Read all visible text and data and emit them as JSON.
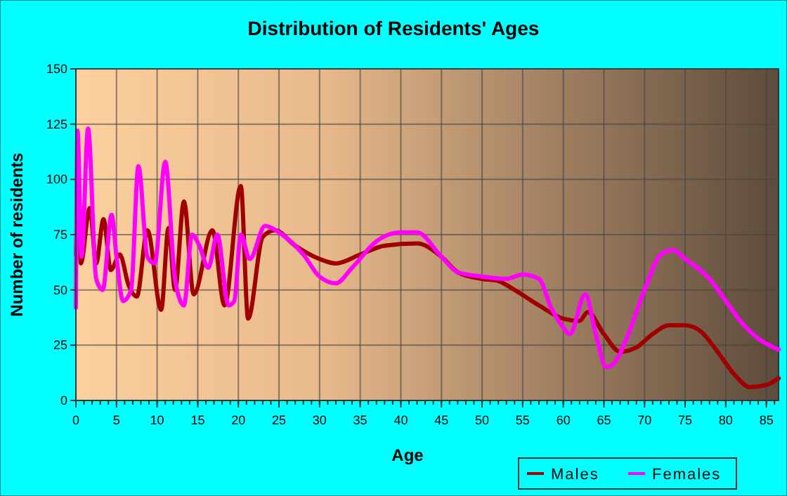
{
  "chart_data": {
    "type": "line",
    "title": "Distribution of Residents' Ages",
    "xlabel": "Age",
    "ylabel": "Number of residents",
    "xlim": [
      0,
      86.5
    ],
    "xticks": [
      0,
      5,
      10,
      15,
      20,
      25,
      30,
      35,
      40,
      45,
      50,
      55,
      60,
      65,
      70,
      75,
      80,
      85
    ],
    "ylim": [
      0,
      150
    ],
    "yticks": [
      0,
      25,
      50,
      75,
      100,
      125,
      150
    ],
    "grid": true,
    "legend": "bottom right",
    "series": [
      {
        "name": "Males",
        "color": "#a00000",
        "x": [
          0,
          0.3,
          0.6,
          1.7,
          2.5,
          3.4,
          4.3,
          5.4,
          6.5,
          7.5,
          8.8,
          10.5,
          11.4,
          12.2,
          13.3,
          14.5,
          16.8,
          18.3,
          20.3,
          21.2,
          23,
          24.5,
          27,
          30,
          32,
          35,
          38,
          42,
          45,
          47,
          50,
          52,
          54,
          57,
          60,
          62,
          63,
          65,
          67,
          69,
          71,
          73,
          75,
          77,
          79,
          81,
          83,
          85,
          86.5
        ],
        "values": [
          66,
          86,
          62,
          87,
          62,
          82,
          59,
          66,
          52,
          47,
          77,
          41,
          78,
          50,
          90,
          48,
          77,
          43,
          97,
          37,
          74,
          77,
          70,
          64,
          62,
          66,
          70,
          71,
          65,
          58,
          55,
          54,
          50,
          43,
          37,
          36,
          40,
          30,
          22,
          24,
          30,
          34,
          34,
          31,
          22,
          12,
          6,
          7,
          10
        ]
      },
      {
        "name": "Females",
        "color": "#ff00ff",
        "x": [
          0,
          0.2,
          0.7,
          1.5,
          2.5,
          3.3,
          4.4,
          5,
          5.8,
          6.8,
          7.7,
          8.8,
          9.7,
          11,
          12.2,
          13.3,
          14.3,
          15.2,
          16.3,
          17.4,
          18.8,
          19.5,
          20.3,
          21.4,
          23.3,
          25,
          28,
          30,
          32,
          34,
          37,
          40,
          42,
          45,
          47,
          50,
          53,
          55,
          57,
          58.5,
          60,
          60.8,
          62.7,
          64,
          65.3,
          66.5,
          68,
          70,
          72,
          73.5,
          75,
          78,
          80,
          82,
          84,
          86.5
        ],
        "values": [
          42,
          122,
          65,
          123,
          55,
          50,
          84,
          65,
          45,
          50,
          106,
          65,
          62,
          108,
          55,
          43,
          75,
          70,
          60,
          75,
          43,
          45,
          75,
          64,
          79,
          76,
          66,
          56,
          53,
          60,
          72,
          76,
          76,
          65,
          58,
          56,
          55,
          57,
          55,
          42,
          33,
          30,
          48,
          30,
          15,
          18,
          30,
          50,
          66,
          68,
          64,
          55,
          45,
          35,
          28,
          23
        ]
      }
    ]
  }
}
